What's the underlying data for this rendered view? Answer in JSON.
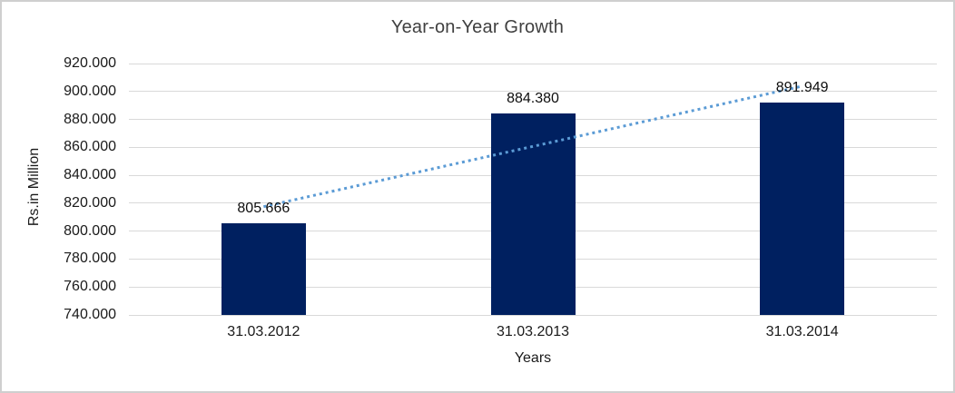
{
  "chart_data": {
    "type": "bar",
    "title": "Year-on-Year Growth",
    "xlabel": "Years",
    "ylabel": "Rs.in Million",
    "categories": [
      "31.03.2012",
      "31.03.2013",
      "31.03.2014"
    ],
    "values": [
      805.666,
      884.38,
      891.949
    ],
    "data_labels": [
      "805.666",
      "884.380",
      "891.949"
    ],
    "ylim": [
      740,
      920
    ],
    "ytick_step": 20,
    "ytick_labels": [
      "920.000",
      "900.000",
      "880.000",
      "860.000",
      "840.000",
      "820.000",
      "800.000",
      "780.000",
      "760.000",
      "740.000"
    ],
    "grid": true,
    "legend": "none",
    "trendline": {
      "type": "linear",
      "style": "dotted"
    },
    "colors": {
      "bar": "#002060",
      "trendline": "#5B9BD5",
      "gridline": "#D9D9D9"
    }
  }
}
